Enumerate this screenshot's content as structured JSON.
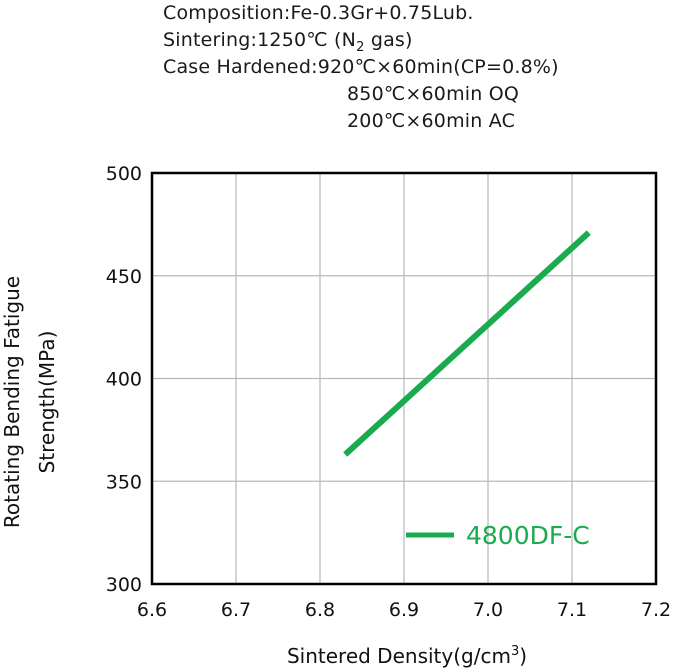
{
  "annotations": {
    "composition_label": "Composition:",
    "composition_value": "Fe-0.3Gr+0.75Lub.",
    "sintering_label": "Sintering:",
    "sintering_value_pre": "1250℃ (N",
    "sintering_value_sub": "2",
    "sintering_value_post": " gas)",
    "case_label": "Case Hardened:",
    "case_lines": [
      "920℃×60min(CP=0.8%)",
      "850℃×60min OQ",
      "200℃×60min AC"
    ]
  },
  "chart_data": {
    "type": "line",
    "xlabel_pre": "Sintered Density(g/cm",
    "xlabel_sup": "3",
    "xlabel_post": ")",
    "ylabel_lines": [
      "Rotating Bending Fatigue",
      "Strength(MPa)"
    ],
    "xlim": [
      6.6,
      7.2
    ],
    "ylim": [
      300,
      500
    ],
    "x_ticks": [
      "6.6",
      "6.7",
      "6.8",
      "6.9",
      "7.0",
      "7.1",
      "7.2"
    ],
    "y_ticks": [
      "300",
      "350",
      "400",
      "450",
      "500"
    ],
    "grid": true,
    "legend_position": "bottom-right",
    "series": [
      {
        "name": "4800DF-C",
        "color": "#1bab4f",
        "points": [
          [
            6.83,
            363
          ],
          [
            7.12,
            471
          ]
        ]
      }
    ]
  }
}
